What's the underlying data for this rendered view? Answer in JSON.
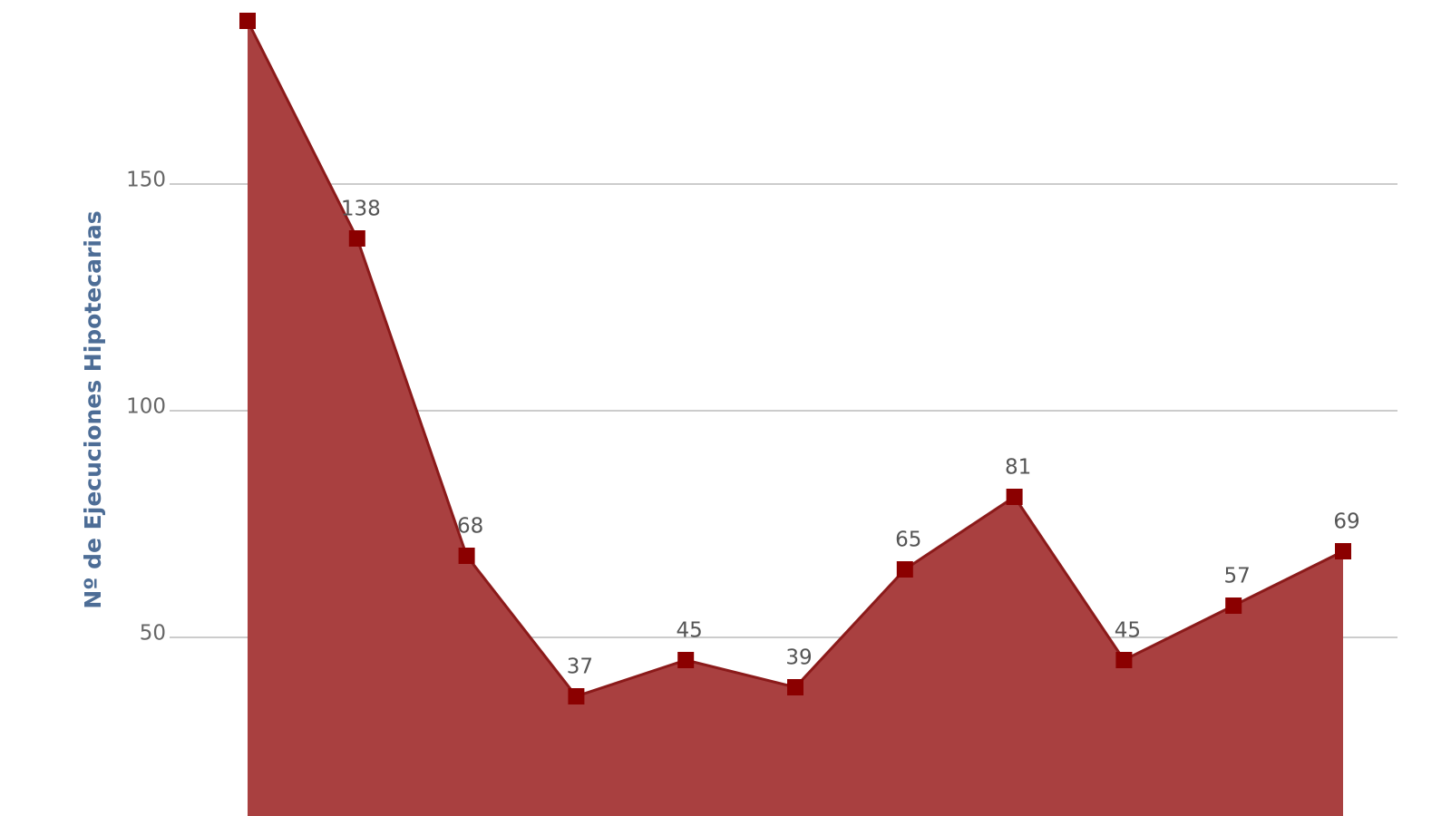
{
  "chart_data": {
    "type": "area",
    "y_label": "Nº de Ejecuciones Hipotecarias",
    "categories": [
      null,
      null,
      null,
      null,
      null,
      null,
      null,
      null,
      null,
      null,
      null
    ],
    "series": [
      {
        "color": "#a94040",
        "line_color": "#8b1a1a",
        "marker_color": "#8b0000",
        "values": [
          186,
          138,
          68,
          37,
          45,
          39,
          65,
          81,
          45,
          57,
          69
        ]
      }
    ],
    "ylim": [
      10.6,
      190.6
    ],
    "yticks": [
      50,
      100,
      150
    ],
    "grid": true
  }
}
